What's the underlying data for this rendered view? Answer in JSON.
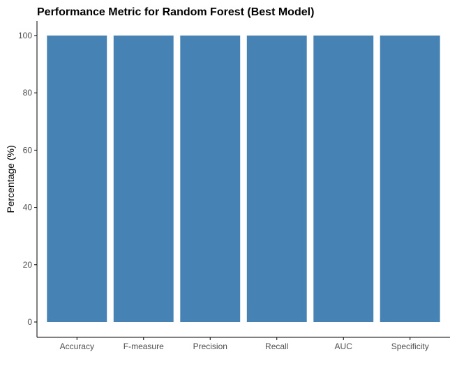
{
  "chart_data": {
    "type": "bar",
    "title": "Performance Metric for Random Forest (Best Model)",
    "xlabel": "",
    "ylabel": "Percentage (%)",
    "categories": [
      "Accuracy",
      "F-measure",
      "Precision",
      "Recall",
      "AUC",
      "Specificity"
    ],
    "values": [
      100,
      100,
      100,
      100,
      100,
      100
    ],
    "ylim": [
      0,
      100
    ],
    "yticks": [
      0,
      20,
      40,
      60,
      80,
      100
    ],
    "grid": false,
    "legend": "none",
    "bar_color": "#4682B4",
    "axis_color": "#000000",
    "tick_label_color": "#4D4D4D"
  }
}
